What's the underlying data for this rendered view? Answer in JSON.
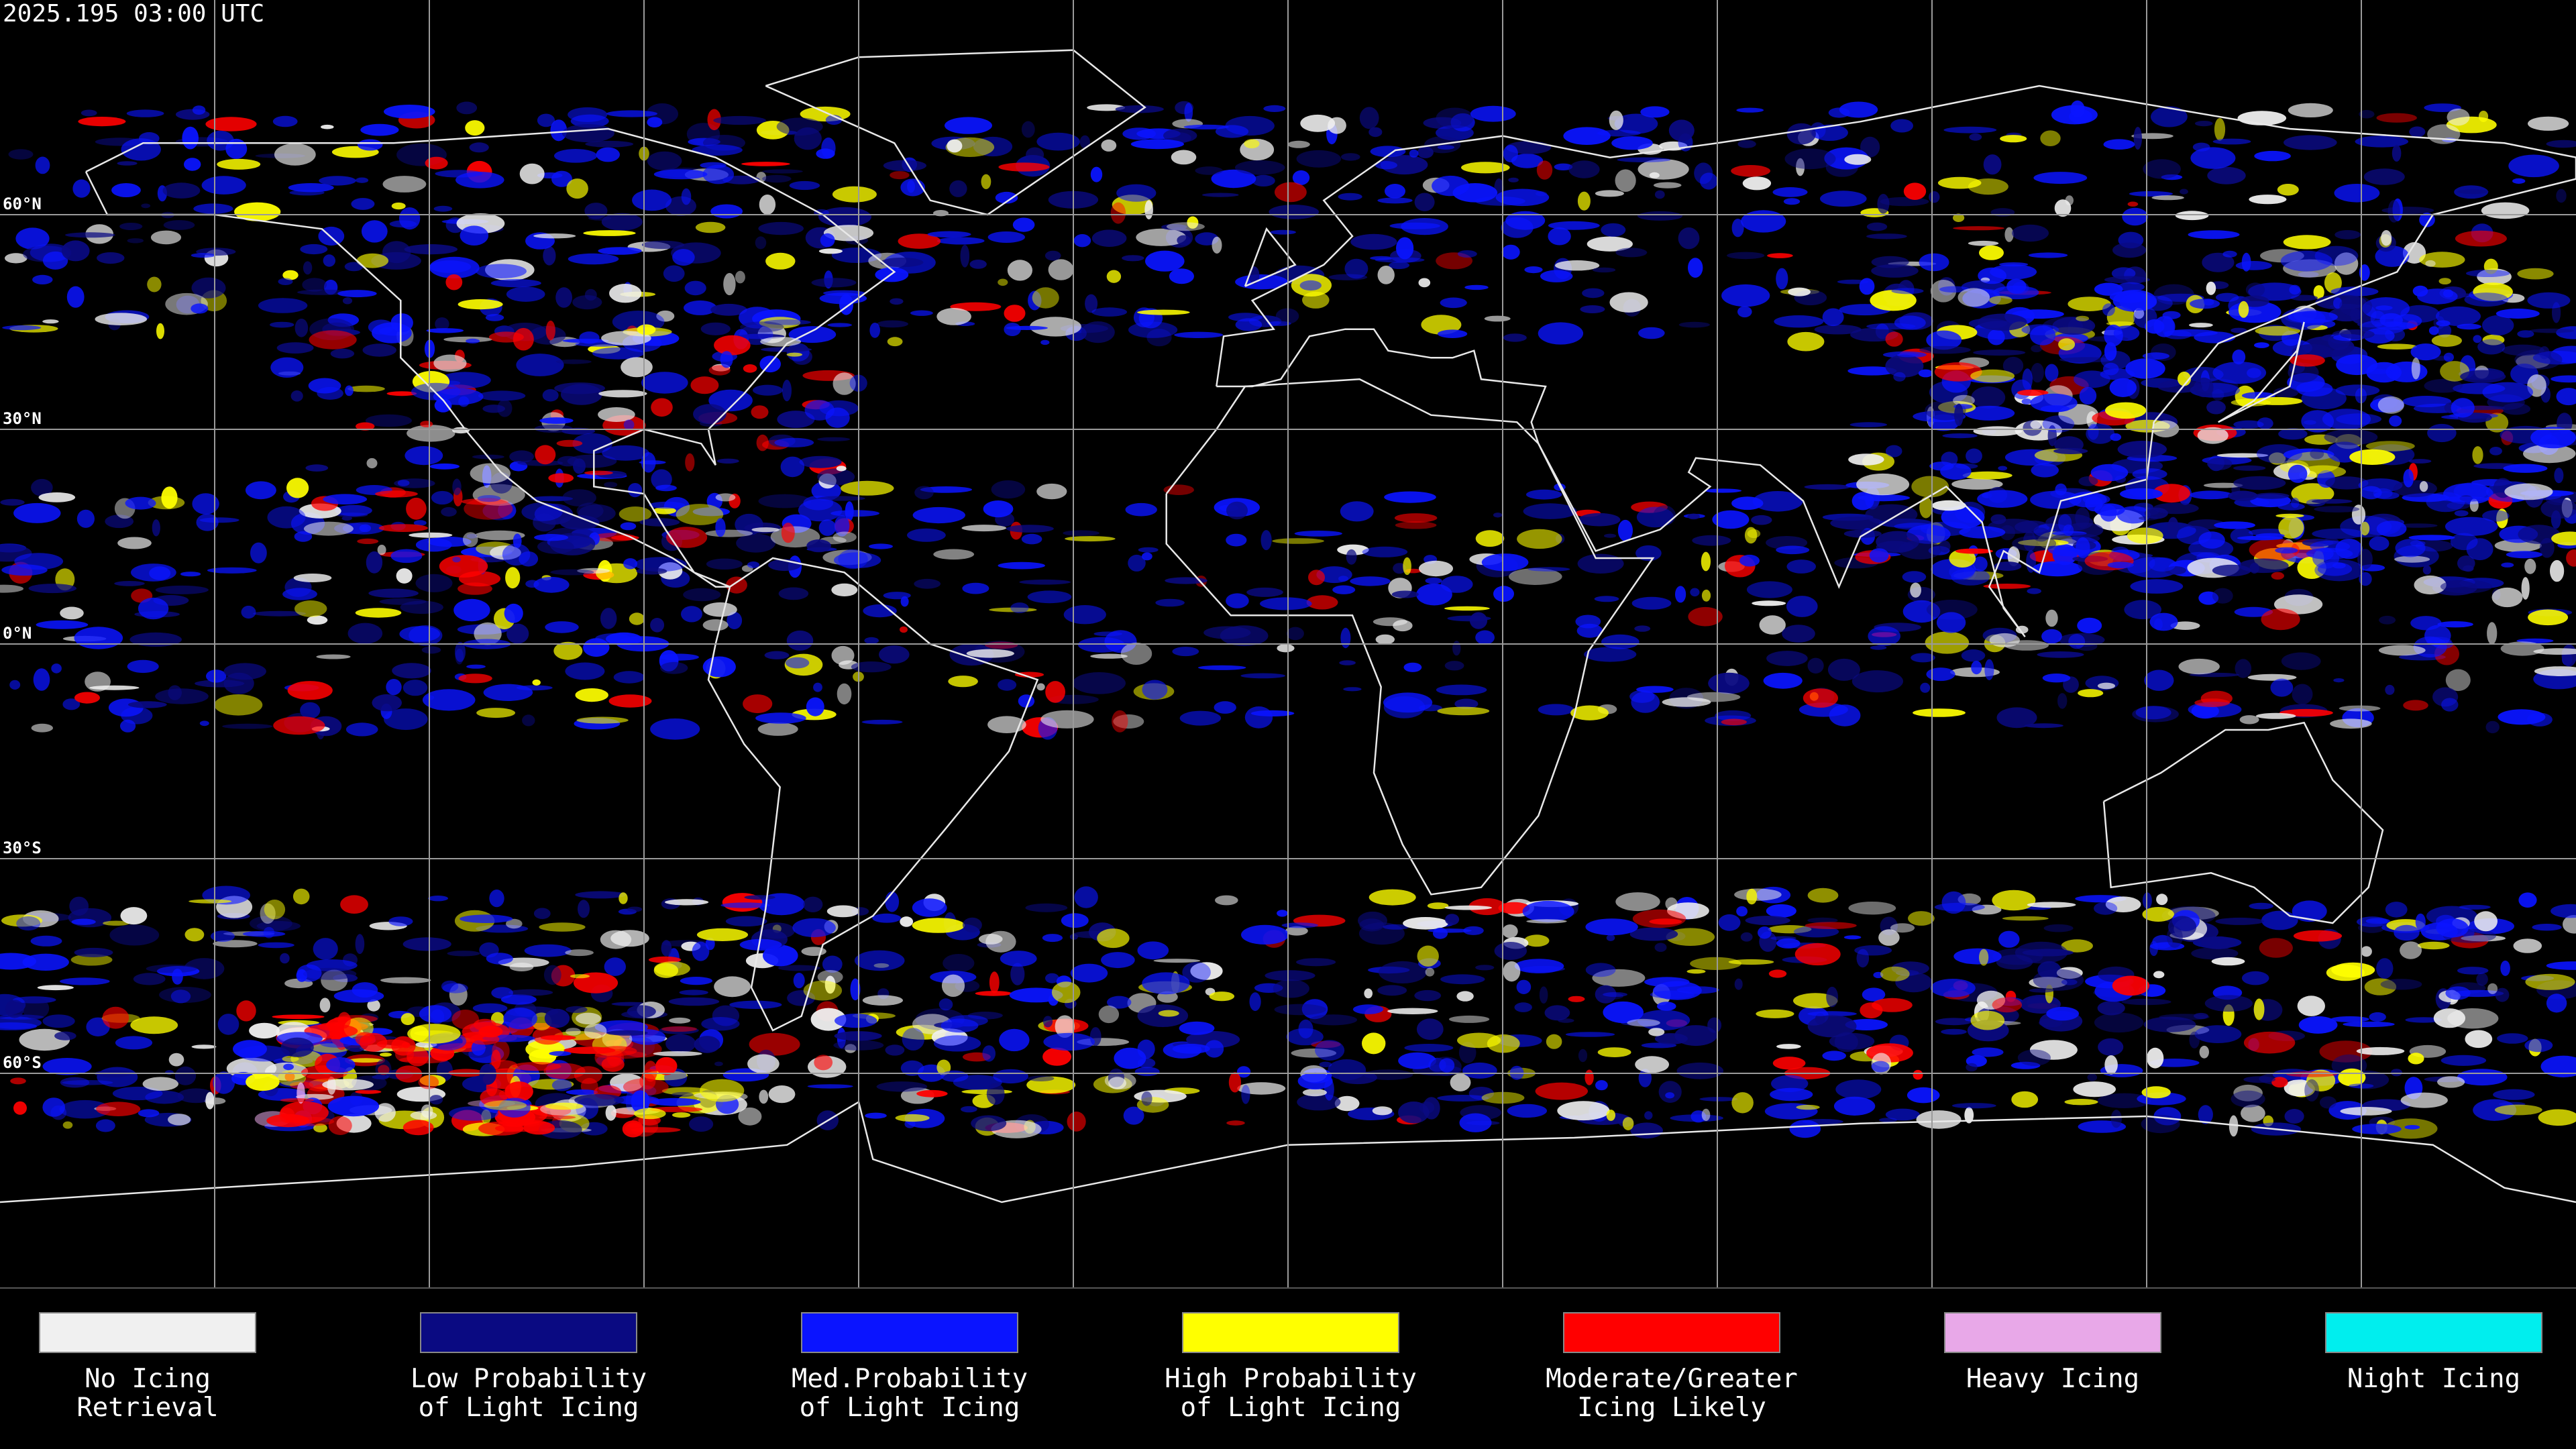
{
  "header": {
    "timestamp": "2025.195 03:00 UTC"
  },
  "map": {
    "latitude_labels": [
      "60°N",
      "30°N",
      "0°N",
      "30°S",
      "60°S"
    ]
  },
  "legend": {
    "items": [
      {
        "lines": [
          "No Icing",
          "Retrieval"
        ],
        "color": "#f0f0f0"
      },
      {
        "lines": [
          "Low Probability",
          "of Light Icing"
        ],
        "color": "#0a0a82"
      },
      {
        "lines": [
          "Med.Probability",
          "of Light Icing"
        ],
        "color": "#0a14ff"
      },
      {
        "lines": [
          "High Probability",
          "of Light Icing"
        ],
        "color": "#ffff00"
      },
      {
        "lines": [
          "Moderate/Greater",
          "Icing Likely"
        ],
        "color": "#ff0000"
      },
      {
        "lines": [
          "Heavy Icing"
        ],
        "color": "#e8a8e8"
      },
      {
        "lines": [
          "Night Icing"
        ],
        "color": "#00eeee"
      }
    ]
  }
}
